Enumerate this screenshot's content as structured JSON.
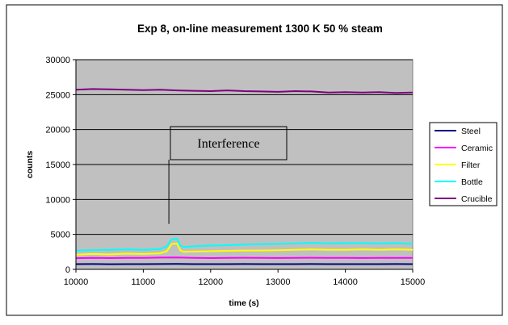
{
  "chart_data": {
    "type": "line",
    "title": "Exp 8, on-line measurement 1300 K 50 % steam",
    "xlabel": "time (s)",
    "ylabel": "counts",
    "xlim": [
      10000,
      15000
    ],
    "ylim": [
      0,
      30000
    ],
    "x_ticks": [
      10000,
      11000,
      12000,
      13000,
      14000,
      15000
    ],
    "y_ticks": [
      0,
      5000,
      10000,
      15000,
      20000,
      25000,
      30000
    ],
    "grid": "horizontal major gridlines",
    "plot_background": "#c0c0c0",
    "legend_position": "right",
    "annotation": {
      "text": "Interference",
      "x": 11380,
      "y_tip": 6500
    },
    "series": [
      {
        "name": "Steel",
        "color": "#000080",
        "x": [
          10000,
          10250,
          10500,
          10750,
          11000,
          11250,
          11500,
          11750,
          12000,
          12250,
          12500,
          12750,
          13000,
          13250,
          13500,
          13750,
          14000,
          14250,
          14500,
          14750,
          15000
        ],
        "values": [
          750,
          760,
          740,
          755,
          750,
          760,
          770,
          750,
          745,
          755,
          760,
          750,
          745,
          755,
          760,
          750,
          755,
          745,
          750,
          760,
          750
        ]
      },
      {
        "name": "Ceramic",
        "color": "#ff00ff",
        "x": [
          10000,
          10250,
          10500,
          10750,
          11000,
          11250,
          11500,
          11750,
          12000,
          12250,
          12500,
          12750,
          13000,
          13250,
          13500,
          13750,
          14000,
          14250,
          14500,
          14750,
          15000
        ],
        "values": [
          1600,
          1650,
          1620,
          1640,
          1650,
          1680,
          1700,
          1650,
          1620,
          1640,
          1660,
          1650,
          1630,
          1650,
          1660,
          1640,
          1650,
          1630,
          1650,
          1640,
          1650
        ]
      },
      {
        "name": "Filter",
        "color": "#ffff00",
        "x": [
          10000,
          10250,
          10500,
          10750,
          11000,
          11250,
          11350,
          11420,
          11500,
          11550,
          11600,
          11750,
          12000,
          12250,
          12500,
          12750,
          13000,
          13250,
          13500,
          13750,
          14000,
          14250,
          14500,
          14750,
          15000
        ],
        "values": [
          2100,
          2200,
          2150,
          2250,
          2200,
          2300,
          2600,
          3600,
          3700,
          2700,
          2500,
          2550,
          2600,
          2650,
          2700,
          2700,
          2750,
          2800,
          2850,
          2800,
          2800,
          2850,
          2800,
          2850,
          2800
        ]
      },
      {
        "name": "Bottle",
        "color": "#00ffff",
        "x": [
          10000,
          10250,
          10500,
          10750,
          11000,
          11250,
          11350,
          11420,
          11500,
          11550,
          11600,
          11750,
          12000,
          12250,
          12500,
          12750,
          13000,
          13250,
          13500,
          13750,
          14000,
          14250,
          14500,
          14750,
          15000
        ],
        "values": [
          2700,
          2750,
          2800,
          2850,
          2800,
          2900,
          3300,
          4300,
          4400,
          3400,
          3200,
          3300,
          3400,
          3450,
          3550,
          3600,
          3650,
          3700,
          3800,
          3700,
          3750,
          3750,
          3700,
          3750,
          3650
        ]
      },
      {
        "name": "Crucible",
        "color": "#800080",
        "x": [
          10000,
          10250,
          10500,
          10750,
          11000,
          11250,
          11500,
          11750,
          12000,
          12250,
          12500,
          12750,
          13000,
          13250,
          13500,
          13750,
          14000,
          14250,
          14500,
          14750,
          15000
        ],
        "values": [
          25700,
          25800,
          25750,
          25700,
          25650,
          25700,
          25600,
          25550,
          25500,
          25600,
          25500,
          25450,
          25400,
          25500,
          25450,
          25300,
          25350,
          25300,
          25350,
          25250,
          25300
        ]
      }
    ]
  }
}
